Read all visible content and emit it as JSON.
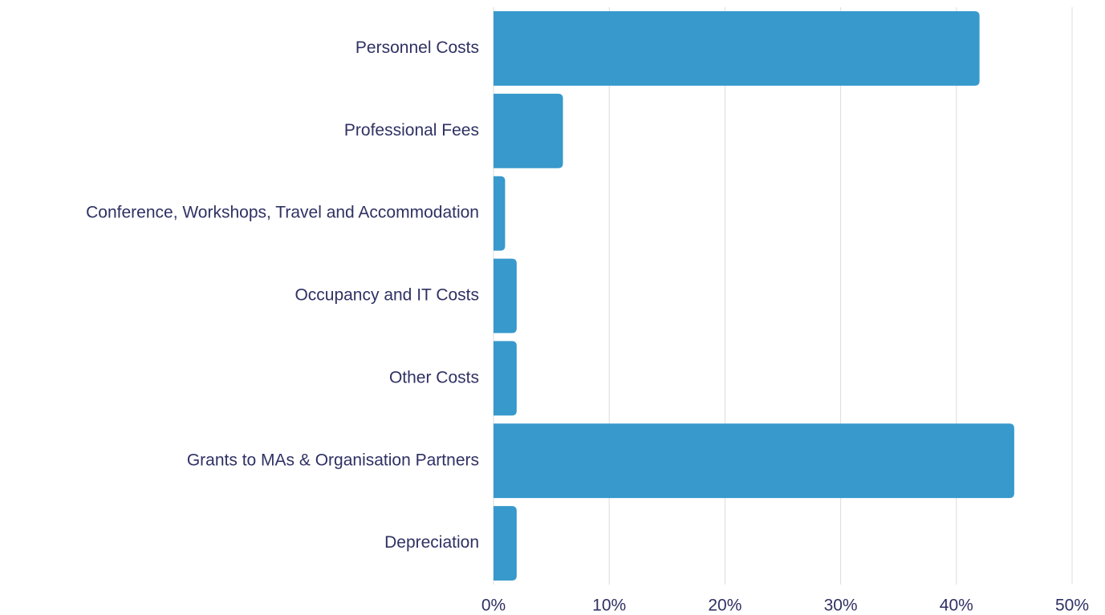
{
  "chart_data": {
    "type": "bar",
    "orientation": "horizontal",
    "categories": [
      "Personnel Costs",
      "Professional Fees",
      "Conference, Workshops, Travel and Accommodation",
      "Occupancy and IT Costs",
      "Other Costs",
      "Grants to MAs & Organisation Partners",
      "Depreciation"
    ],
    "values": [
      42,
      6,
      1,
      2,
      2,
      45,
      2
    ],
    "color": "#3799cc",
    "xlim": [
      0,
      50
    ],
    "xticks": [
      {
        "value": 0,
        "label": "0%"
      },
      {
        "value": 10,
        "label": "10%"
      },
      {
        "value": 20,
        "label": "20%"
      },
      {
        "value": 30,
        "label": "30%"
      },
      {
        "value": 40,
        "label": "40%"
      },
      {
        "value": 50,
        "label": "50%"
      }
    ],
    "grid": true
  }
}
